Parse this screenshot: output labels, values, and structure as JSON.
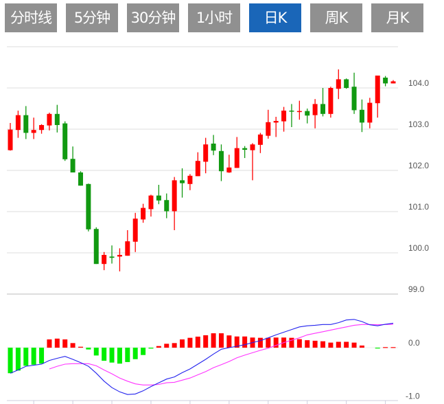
{
  "tabs": [
    {
      "label": "分时线",
      "active": false
    },
    {
      "label": "5分钟",
      "active": false
    },
    {
      "label": "30分钟",
      "active": false
    },
    {
      "label": "1小时",
      "active": false
    },
    {
      "label": "日K",
      "active": true
    },
    {
      "label": "周K",
      "active": false
    },
    {
      "label": "月K",
      "active": false
    }
  ],
  "colors": {
    "up": "#ff0000",
    "down": "#119911",
    "hist_up": "#ff0000",
    "hist_down": "#00ee00",
    "dif": "#2222ee",
    "dea": "#ff33ff",
    "grid": "#dddddd",
    "tab_bg": "#909090",
    "tab_active": "#1a66b8"
  },
  "chart_data": [
    {
      "type": "candlestick",
      "title": "",
      "ylim": [
        99,
        105
      ],
      "yticks": [
        "104.0",
        "103.0",
        "102.0",
        "101.0",
        "100.0",
        "99.0"
      ],
      "ytick_values": [
        104,
        103,
        102,
        101,
        100,
        99
      ],
      "ohlc": [
        [
          102.49,
          103.15,
          102.48,
          102.99
        ],
        [
          102.98,
          103.45,
          102.79,
          103.34
        ],
        [
          103.34,
          103.56,
          102.76,
          102.91
        ],
        [
          102.91,
          103.28,
          102.76,
          102.98
        ],
        [
          102.98,
          103.12,
          102.89,
          103.1
        ],
        [
          103.09,
          103.4,
          102.97,
          103.37
        ],
        [
          103.37,
          103.59,
          102.92,
          103.1
        ],
        [
          103.14,
          103.19,
          102.23,
          102.27
        ],
        [
          102.28,
          102.58,
          101.95,
          101.95
        ],
        [
          101.95,
          101.98,
          101.63,
          101.63
        ],
        [
          101.67,
          101.68,
          100.52,
          100.57
        ],
        [
          100.58,
          100.62,
          99.73,
          99.73
        ],
        [
          99.73,
          100.02,
          99.58,
          99.95
        ],
        [
          99.91,
          100.18,
          99.74,
          99.88
        ],
        [
          99.91,
          100.11,
          99.55,
          99.95
        ],
        [
          99.93,
          100.55,
          99.93,
          100.28
        ],
        [
          100.27,
          100.97,
          100.02,
          100.83
        ],
        [
          100.81,
          101.19,
          100.73,
          101.09
        ],
        [
          101.06,
          101.41,
          100.88,
          101.39
        ],
        [
          101.39,
          101.65,
          101.18,
          101.27
        ],
        [
          101.28,
          101.44,
          100.84,
          101.01
        ],
        [
          101.01,
          101.84,
          100.55,
          101.76
        ],
        [
          101.76,
          102.05,
          101.34,
          101.69
        ],
        [
          101.67,
          101.91,
          101.52,
          101.87
        ],
        [
          101.86,
          102.44,
          101.86,
          102.23
        ],
        [
          102.21,
          102.79,
          101.93,
          102.63
        ],
        [
          102.65,
          102.86,
          102.37,
          102.48
        ],
        [
          102.47,
          102.63,
          101.74,
          101.98
        ],
        [
          101.95,
          102.38,
          101.94,
          102.07
        ],
        [
          102.06,
          102.81,
          102.06,
          102.54
        ],
        [
          102.54,
          102.59,
          102.3,
          102.5
        ],
        [
          102.49,
          102.66,
          101.76,
          102.63
        ],
        [
          102.62,
          102.91,
          102.42,
          102.87
        ],
        [
          102.84,
          103.47,
          102.77,
          103.17
        ],
        [
          103.16,
          103.3,
          102.81,
          103.2
        ],
        [
          103.19,
          103.54,
          102.94,
          103.45
        ],
        [
          103.45,
          103.61,
          103.05,
          103.43
        ],
        [
          103.42,
          103.69,
          103.23,
          103.44
        ],
        [
          103.44,
          103.5,
          103.14,
          103.33
        ],
        [
          103.34,
          103.73,
          103.02,
          103.61
        ],
        [
          103.61,
          104.0,
          103.31,
          103.37
        ],
        [
          103.37,
          104.03,
          103.28,
          104.0
        ],
        [
          103.98,
          104.45,
          103.73,
          104.21
        ],
        [
          104.21,
          104.23,
          103.98,
          104.0
        ],
        [
          104.03,
          104.37,
          103.37,
          103.46
        ],
        [
          103.47,
          103.72,
          102.93,
          103.16
        ],
        [
          103.16,
          103.76,
          103.02,
          103.64
        ],
        [
          103.63,
          104.3,
          103.28,
          104.3
        ],
        [
          104.25,
          104.29,
          104.04,
          104.11
        ],
        [
          104.11,
          104.19,
          104.11,
          104.16
        ]
      ]
    },
    {
      "type": "macd",
      "ylim": [
        -1.0,
        1.0
      ],
      "yticks": [
        "0.0",
        "-1.0"
      ],
      "ytick_values": [
        0,
        -1
      ],
      "histogram": [
        -0.48,
        -0.43,
        -0.34,
        -0.32,
        -0.3,
        0.155,
        0.17,
        0.155,
        0.086,
        0.017,
        -0.034,
        -0.147,
        -0.246,
        -0.28,
        -0.3,
        -0.27,
        -0.216,
        -0.138,
        -0.017,
        0.03,
        0.073,
        0.086,
        0.155,
        0.185,
        0.207,
        0.233,
        0.27,
        0.27,
        0.23,
        0.21,
        0.21,
        0.19,
        0.185,
        0.185,
        0.19,
        0.19,
        0.185,
        0.16,
        0.14,
        0.13,
        0.12,
        0.095,
        0.11,
        0.11,
        0.095,
        0.04,
        0.0,
        -0.01,
        0.01,
        0.01
      ],
      "dif": [
        -0.48,
        -0.42,
        -0.35,
        -0.33,
        -0.31,
        -0.24,
        -0.2,
        -0.164,
        -0.22,
        -0.28,
        -0.35,
        -0.48,
        -0.63,
        -0.75,
        -0.83,
        -0.88,
        -0.87,
        -0.81,
        -0.73,
        -0.66,
        -0.59,
        -0.55,
        -0.47,
        -0.4,
        -0.31,
        -0.22,
        -0.12,
        -0.03,
        0.0,
        0.026,
        0.056,
        0.095,
        0.13,
        0.185,
        0.24,
        0.29,
        0.34,
        0.39,
        0.41,
        0.42,
        0.435,
        0.435,
        0.47,
        0.52,
        0.53,
        0.49,
        0.43,
        0.41,
        0.44,
        0.46
      ],
      "dea": [
        null,
        null,
        null,
        null,
        null,
        -0.4,
        -0.35,
        -0.31,
        -0.3,
        -0.3,
        -0.3,
        -0.34,
        -0.42,
        -0.49,
        -0.57,
        -0.63,
        -0.68,
        -0.7,
        -0.7,
        -0.69,
        -0.66,
        -0.65,
        -0.61,
        -0.57,
        -0.51,
        -0.45,
        -0.375,
        -0.32,
        -0.26,
        -0.19,
        -0.14,
        -0.095,
        -0.05,
        -0.01,
        0.043,
        0.095,
        0.14,
        0.185,
        0.24,
        0.27,
        0.3,
        0.33,
        0.36,
        0.39,
        0.42,
        0.435,
        0.435,
        0.43,
        0.435,
        0.44
      ]
    }
  ]
}
